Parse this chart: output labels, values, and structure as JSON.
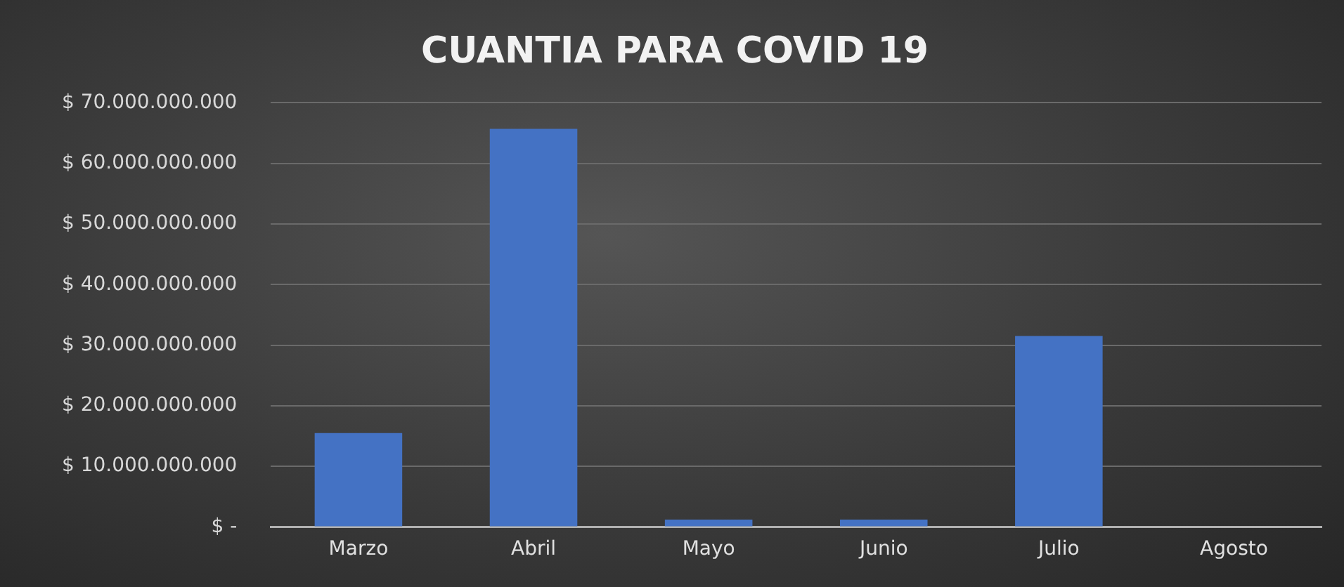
{
  "chart_data": {
    "type": "bar",
    "title": "CUANTIA PARA COVID 19",
    "categories": [
      "Marzo",
      "Abril",
      "Mayo",
      "Junio",
      "Julio",
      "Agosto"
    ],
    "values": [
      15500000000,
      65700000000,
      1200000000,
      1200000000,
      31500000000,
      0
    ],
    "color": "#4472c4",
    "ylim": [
      0,
      70000000000
    ],
    "yticks": [
      {
        "value": 0,
        "label": "$ -"
      },
      {
        "value": 10000000000,
        "label": "$ 10.000.000.000"
      },
      {
        "value": 20000000000,
        "label": "$ 20.000.000.000"
      },
      {
        "value": 30000000000,
        "label": "$ 30.000.000.000"
      },
      {
        "value": 40000000000,
        "label": "$ 40.000.000.000"
      },
      {
        "value": 50000000000,
        "label": "$ 50.000.000.000"
      },
      {
        "value": 60000000000,
        "label": "$ 60.000.000.000"
      },
      {
        "value": 70000000000,
        "label": "$ 70.000.000.000"
      }
    ],
    "grid": "y"
  }
}
